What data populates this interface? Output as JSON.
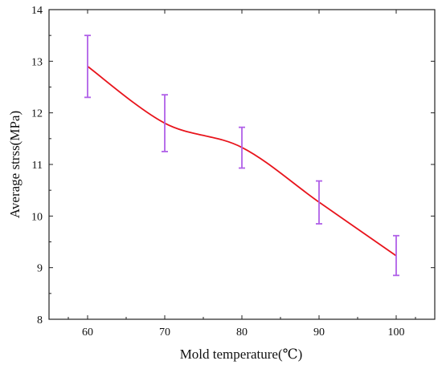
{
  "chart_data": {
    "type": "line",
    "xlabel": "Mold temperature(℃)",
    "ylabel": "Average strss(MPa)",
    "xlim": [
      55,
      105
    ],
    "ylim": [
      8,
      14
    ],
    "x_ticks": [
      60,
      70,
      80,
      90,
      100
    ],
    "y_ticks": [
      8,
      9,
      10,
      11,
      12,
      13,
      14
    ],
    "x": [
      60,
      70,
      80,
      90,
      100
    ],
    "series": [
      {
        "values": [
          12.9,
          11.8,
          11.33,
          10.27,
          9.23
        ],
        "error_low": [
          12.3,
          11.25,
          10.93,
          9.85,
          8.85
        ],
        "error_high": [
          13.5,
          12.35,
          11.72,
          10.68,
          9.62
        ],
        "line_color": "#e8141c",
        "error_color": "#b060e8"
      }
    ],
    "grid": false,
    "legend": "none"
  }
}
